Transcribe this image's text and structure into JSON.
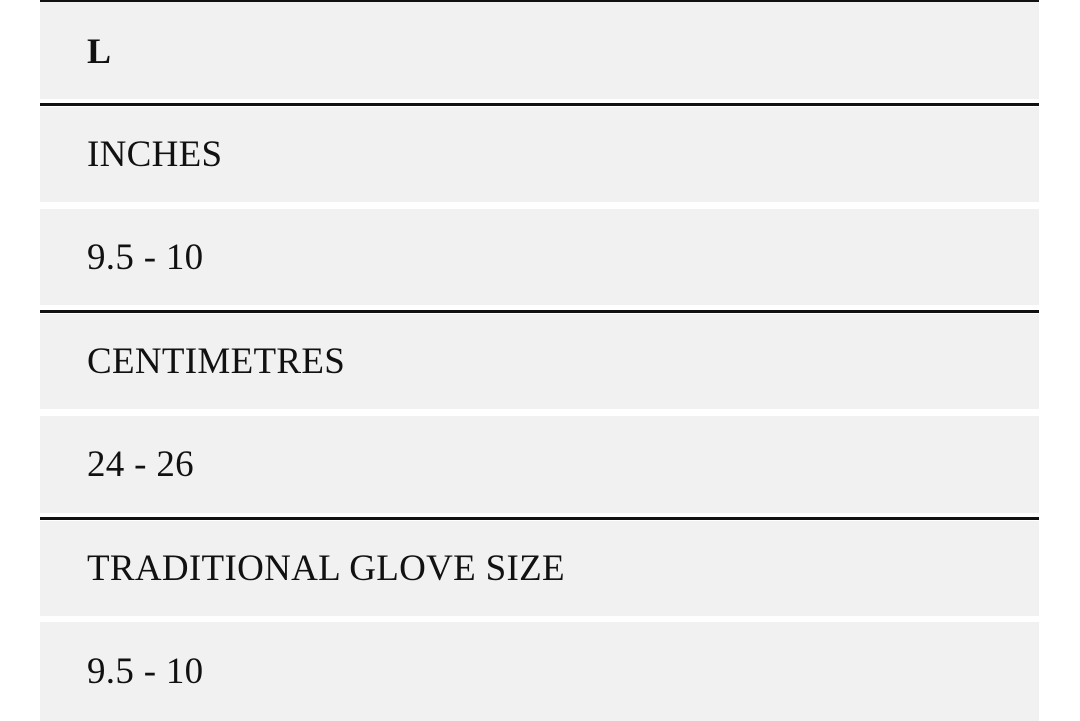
{
  "size_label": "L",
  "rows": [
    {
      "label": "INCHES",
      "value": "9.5 - 10"
    },
    {
      "label": "CENTIMETRES",
      "value": "24 - 26"
    },
    {
      "label": "TRADITIONAL GLOVE SIZE",
      "value": "9.5 - 10"
    }
  ]
}
